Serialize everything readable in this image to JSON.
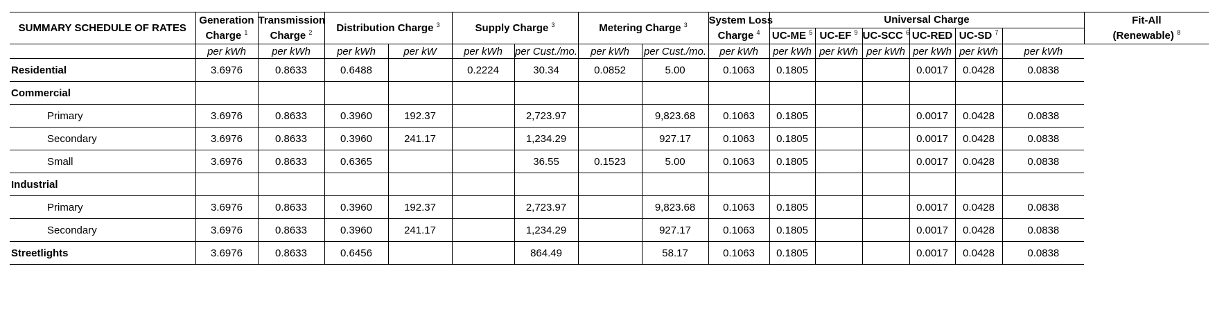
{
  "headers": {
    "title": "SUMMARY SCHEDULE OF RATES",
    "generation": {
      "line1": "Generation",
      "line2": "Charge",
      "sup": "1"
    },
    "transmission": {
      "line1": "Transmission",
      "line2": "Charge",
      "sup": "2"
    },
    "distribution": {
      "label": "Distribution Charge",
      "sup": "3"
    },
    "supply": {
      "label": "Supply Charge",
      "sup": "3"
    },
    "metering": {
      "label": "Metering Charge",
      "sup": "3"
    },
    "system_loss": {
      "line1": "System Loss",
      "line2": "Charge",
      "sup": "4"
    },
    "universal": {
      "label": "Universal Charge"
    },
    "uc_me": {
      "label": "UC-ME",
      "sup": "5"
    },
    "uc_ef": {
      "label": "UC-EF",
      "sup": "9"
    },
    "uc_scc": {
      "label": "UC-SCC",
      "sup": "6"
    },
    "uc_red": {
      "label": "UC-RED"
    },
    "uc_sd": {
      "label": "UC-SD",
      "sup": "7"
    },
    "fit_all": {
      "line1": "Fit-All",
      "line2": "(Renewable)",
      "sup": "8"
    }
  },
  "units": [
    "per kWh",
    "per kWh",
    "per kWh",
    "per kW",
    "per kWh",
    "per Cust./mo.",
    "per kWh",
    "per Cust./mo.",
    "per kWh",
    "per kWh",
    "per kWh",
    "per kWh",
    "per kWh",
    "per kWh",
    "per kWh"
  ],
  "rows": [
    {
      "label": "Residential",
      "values": [
        "3.6976",
        "0.8633",
        "0.6488",
        "",
        "0.2224",
        "30.34",
        "0.0852",
        "5.00",
        "0.1063",
        "0.1805",
        "",
        "",
        "0.0017",
        "0.0428",
        "0.0838"
      ]
    },
    {
      "label": "Commercial",
      "values": [
        "",
        "",
        "",
        "",
        "",
        "",
        "",
        "",
        "",
        "",
        "",
        "",
        "",
        "",
        ""
      ]
    },
    {
      "label": "Primary",
      "values": [
        "3.6976",
        "0.8633",
        "0.3960",
        "192.37",
        "",
        "2,723.97",
        "",
        "9,823.68",
        "0.1063",
        "0.1805",
        "",
        "",
        "0.0017",
        "0.0428",
        "0.0838"
      ]
    },
    {
      "label": "Secondary",
      "values": [
        "3.6976",
        "0.8633",
        "0.3960",
        "241.17",
        "",
        "1,234.29",
        "",
        "927.17",
        "0.1063",
        "0.1805",
        "",
        "",
        "0.0017",
        "0.0428",
        "0.0838"
      ]
    },
    {
      "label": "Small",
      "values": [
        "3.6976",
        "0.8633",
        "0.6365",
        "",
        "",
        "36.55",
        "0.1523",
        "5.00",
        "0.1063",
        "0.1805",
        "",
        "",
        "0.0017",
        "0.0428",
        "0.0838"
      ]
    },
    {
      "label": "Industrial",
      "values": [
        "",
        "",
        "",
        "",
        "",
        "",
        "",
        "",
        "",
        "",
        "",
        "",
        "",
        "",
        ""
      ]
    },
    {
      "label": "Primary",
      "values": [
        "3.6976",
        "0.8633",
        "0.3960",
        "192.37",
        "",
        "2,723.97",
        "",
        "9,823.68",
        "0.1063",
        "0.1805",
        "",
        "",
        "0.0017",
        "0.0428",
        "0.0838"
      ]
    },
    {
      "label": "Secondary",
      "values": [
        "3.6976",
        "0.8633",
        "0.3960",
        "241.17",
        "",
        "1,234.29",
        "",
        "927.17",
        "0.1063",
        "0.1805",
        "",
        "",
        "0.0017",
        "0.0428",
        "0.0838"
      ]
    },
    {
      "label": "Streetlights",
      "values": [
        "3.6976",
        "0.8633",
        "0.6456",
        "",
        "",
        "864.49",
        "",
        "58.17",
        "0.1063",
        "0.1805",
        "",
        "",
        "0.0017",
        "0.0428",
        "0.0838"
      ]
    }
  ]
}
